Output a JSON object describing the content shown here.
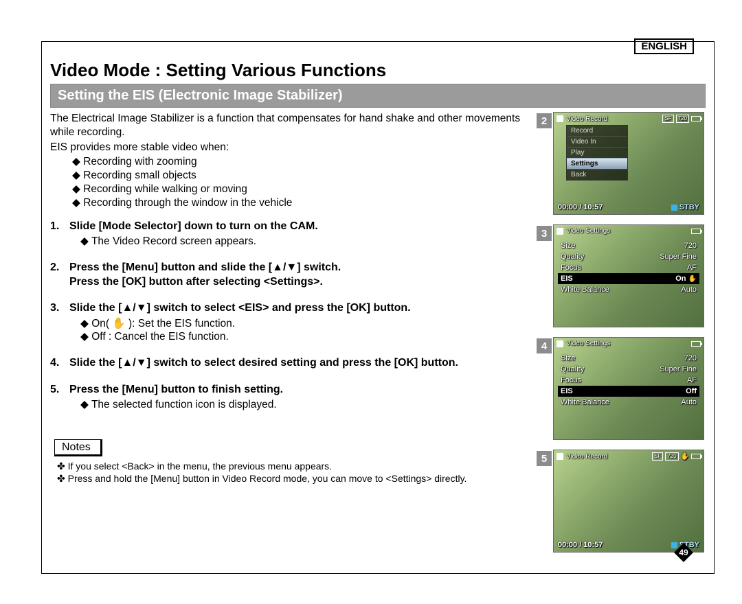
{
  "lang_badge": "ENGLISH",
  "title": "Video Mode : Setting Various Functions",
  "subtitle": "Setting the EIS (Electronic Image Stabilizer)",
  "intro": "The Electrical Image Stabilizer is a function that compensates for hand shake and other movements while recording.",
  "intro2": "EIS provides more stable video when:",
  "bullets": [
    "Recording with zooming",
    "Recording small objects",
    "Recording while walking or moving",
    "Recording through the window in the vehicle"
  ],
  "steps": [
    {
      "n": "1.",
      "head": "Slide [Mode Selector] down to turn on the CAM.",
      "subs": [
        "The Video Record screen appears."
      ]
    },
    {
      "n": "2.",
      "head": "Press the [Menu] button and slide the [▲/▼] switch.\nPress the [OK] button after selecting <Settings>.",
      "subs": []
    },
    {
      "n": "3.",
      "head": "Slide the [▲/▼] switch to select <EIS> and press the [OK] button.",
      "subs": [
        "On( ✋ ):  Set the EIS function.",
        "Off :  Cancel the EIS function."
      ]
    },
    {
      "n": "4.",
      "head": "Slide the [▲/▼] switch to select desired setting and press the [OK] button.",
      "subs": []
    },
    {
      "n": "5.",
      "head": "Press the [Menu] button to finish setting.",
      "subs": [
        "The selected function icon is displayed."
      ]
    }
  ],
  "notes_label": "Notes",
  "notes": [
    "If you select <Back> in the menu, the previous menu appears.",
    "Press and hold the [Menu] button in Video Record mode, you can move to <Settings> directly."
  ],
  "page_number": "49",
  "screens": [
    {
      "n": "2",
      "title": "Video Record",
      "top_badges": [
        "SF",
        "720"
      ],
      "bottom": {
        "time": "00:00 / 10:57",
        "status": "STBY"
      },
      "menu": {
        "items": [
          "Record",
          "Video In",
          "Play",
          "Settings",
          "Back"
        ],
        "highlight_index": 3
      }
    },
    {
      "n": "3",
      "title": "Video Settings",
      "rows": [
        {
          "k": "Size",
          "v": "720"
        },
        {
          "k": "Quality",
          "v": "Super Fine"
        },
        {
          "k": "Focus",
          "v": "AF"
        },
        {
          "k": "EIS",
          "v": "On",
          "hand": true
        },
        {
          "k": "White Balance",
          "v": "Auto"
        }
      ],
      "highlight_index": 3
    },
    {
      "n": "4",
      "title": "Video Settings",
      "rows": [
        {
          "k": "Size",
          "v": "720"
        },
        {
          "k": "Quality",
          "v": "Super Fine"
        },
        {
          "k": "Focus",
          "v": "AF"
        },
        {
          "k": "EIS",
          "v": "Off"
        },
        {
          "k": "White Balance",
          "v": "Auto"
        }
      ],
      "highlight_index": 3
    },
    {
      "n": "5",
      "title": "Video Record",
      "top_badges": [
        "SF",
        "720"
      ],
      "hand": true,
      "bottom": {
        "time": "00:00 / 10:57",
        "status": "STBY"
      }
    }
  ],
  "colors": {
    "subtitle_bg": "#9b9b9b",
    "screen_num_bg": "#8c8c8c",
    "stby_color": "#bfe6ff"
  }
}
